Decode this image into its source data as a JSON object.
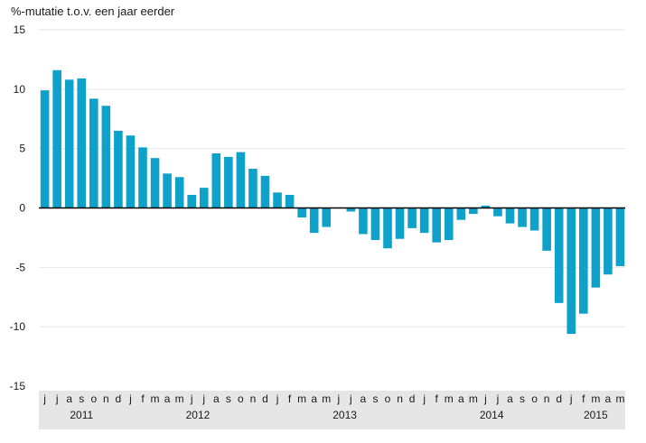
{
  "chart_data": {
    "type": "bar",
    "ylabel": "%-mutatie t.o.v. een jaar eerder",
    "ylim": [
      -15,
      15
    ],
    "yticks": [
      15,
      10,
      5,
      0,
      -5,
      -10,
      -15
    ],
    "grid": true,
    "color": "#0ea1c9",
    "categories": [
      "j",
      "j",
      "a",
      "s",
      "o",
      "n",
      "d",
      "j",
      "f",
      "m",
      "a",
      "m",
      "j",
      "j",
      "a",
      "s",
      "o",
      "n",
      "d",
      "j",
      "f",
      "m",
      "a",
      "m",
      "j",
      "j",
      "a",
      "s",
      "o",
      "n",
      "d",
      "j",
      "f",
      "m",
      "a",
      "m",
      "j",
      "j",
      "a",
      "s",
      "o",
      "n",
      "d",
      "j",
      "f",
      "m",
      "a",
      "m"
    ],
    "years": [
      {
        "label": "2011",
        "start": 0,
        "end": 6
      },
      {
        "label": "2012",
        "start": 7,
        "end": 18
      },
      {
        "label": "2013",
        "start": 19,
        "end": 30
      },
      {
        "label": "2014",
        "start": 31,
        "end": 42
      },
      {
        "label": "2015",
        "start": 43,
        "end": 47
      }
    ],
    "values": [
      9.9,
      11.6,
      10.8,
      10.9,
      9.2,
      8.6,
      6.5,
      6.1,
      5.1,
      4.2,
      2.9,
      2.6,
      1.1,
      1.7,
      4.6,
      4.3,
      4.7,
      3.3,
      2.7,
      1.3,
      1.1,
      -0.8,
      -2.1,
      -1.6,
      0.0,
      -0.3,
      -2.2,
      -2.7,
      -3.4,
      -2.6,
      -1.7,
      -2.1,
      -2.9,
      -2.7,
      -1.0,
      -0.5,
      0.2,
      -0.7,
      -1.3,
      -1.6,
      -1.9,
      -3.6,
      -8.0,
      -10.6,
      -8.9,
      -6.7,
      -5.6,
      -4.9
    ]
  }
}
